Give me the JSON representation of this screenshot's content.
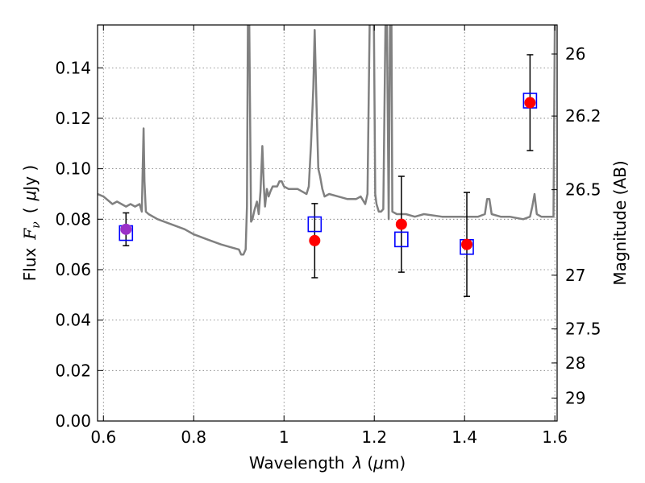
{
  "chart_data": {
    "type": "scatter",
    "xlabel": "Wavelength",
    "xlabel_symbol": "λ",
    "xlabel_unit_open": "(",
    "xlabel_unit_mu": "μ",
    "xlabel_unit_rest": "m)",
    "ylabel": "Flux",
    "ylabel_symbol": "F",
    "ylabel_sub": "ν",
    "ylabel_unit_open": "(",
    "ylabel_unit_mu": "μ",
    "ylabel_unit_rest": "Jy )",
    "y2label": "Magnitude (AB)",
    "xlim": [
      0.587,
      1.605
    ],
    "ylim": [
      0.0,
      0.157
    ],
    "xticks": [
      0.6,
      0.8,
      1.0,
      1.2,
      1.4,
      1.6
    ],
    "xtick_labels": [
      "0.6",
      "0.8",
      "1",
      "1.2",
      "1.4",
      "1.6"
    ],
    "yticks": [
      0.0,
      0.02,
      0.04,
      0.06,
      0.08,
      0.1,
      0.12,
      0.14
    ],
    "ytick_labels": [
      "0.00",
      "0.02",
      "0.04",
      "0.06",
      "0.08",
      "0.10",
      "0.12",
      "0.14"
    ],
    "y2ticks": [
      {
        "label": "26",
        "flux": 0.1455
      },
      {
        "label": "26.2",
        "flux": 0.1209
      },
      {
        "label": "26.5",
        "flux": 0.0917
      },
      {
        "label": "27",
        "flux": 0.0578
      },
      {
        "label": "27.5",
        "flux": 0.0365
      },
      {
        "label": "28",
        "flux": 0.023
      },
      {
        "label": "29",
        "flux": 0.0091
      }
    ],
    "grid": true,
    "colors": {
      "model": "#808080",
      "observed": "#ff0000",
      "synthetic": "#0000ff",
      "errorbar": "#000000",
      "overlap": "#9b30c8"
    },
    "series": [
      {
        "id": "model_sed",
        "type": "line",
        "x": [
          0.587,
          0.6,
          0.62,
          0.63,
          0.64,
          0.65,
          0.66,
          0.67,
          0.68,
          0.685,
          0.687,
          0.689,
          0.691,
          0.694,
          0.7,
          0.72,
          0.75,
          0.78,
          0.8,
          0.83,
          0.86,
          0.88,
          0.9,
          0.905,
          0.91,
          0.915,
          0.918,
          0.92,
          0.923,
          0.927,
          0.93,
          0.935,
          0.94,
          0.944,
          0.948,
          0.952,
          0.955,
          0.958,
          0.962,
          0.966,
          0.97,
          0.975,
          0.98,
          0.985,
          0.99,
          0.995,
          1.0,
          1.01,
          1.02,
          1.03,
          1.04,
          1.05,
          1.055,
          1.06,
          1.065,
          1.068,
          1.072,
          1.076,
          1.08,
          1.085,
          1.09,
          1.1,
          1.12,
          1.14,
          1.16,
          1.17,
          1.18,
          1.185,
          1.19,
          1.193,
          1.196,
          1.199,
          1.202,
          1.205,
          1.21,
          1.215,
          1.22,
          1.225,
          1.228,
          1.232,
          1.235,
          1.238,
          1.24,
          1.25,
          1.27,
          1.29,
          1.31,
          1.35,
          1.4,
          1.43,
          1.445,
          1.45,
          1.455,
          1.46,
          1.48,
          1.5,
          1.53,
          1.545,
          1.55,
          1.555,
          1.56,
          1.57,
          1.59,
          1.597,
          1.6,
          1.605
        ],
        "y": [
          0.09,
          0.089,
          0.086,
          0.087,
          0.086,
          0.085,
          0.086,
          0.085,
          0.086,
          0.083,
          0.1,
          0.116,
          0.095,
          0.083,
          0.082,
          0.08,
          0.078,
          0.076,
          0.074,
          0.072,
          0.07,
          0.069,
          0.068,
          0.066,
          0.066,
          0.068,
          0.085,
          0.16,
          0.16,
          0.079,
          0.08,
          0.084,
          0.087,
          0.082,
          0.091,
          0.109,
          0.094,
          0.085,
          0.092,
          0.089,
          0.091,
          0.093,
          0.093,
          0.093,
          0.095,
          0.095,
          0.093,
          0.092,
          0.092,
          0.092,
          0.091,
          0.09,
          0.093,
          0.11,
          0.132,
          0.155,
          0.125,
          0.1,
          0.097,
          0.092,
          0.089,
          0.09,
          0.089,
          0.088,
          0.088,
          0.089,
          0.086,
          0.09,
          0.16,
          0.16,
          0.16,
          0.16,
          0.09,
          0.086,
          0.083,
          0.083,
          0.084,
          0.16,
          0.16,
          0.08,
          0.16,
          0.16,
          0.083,
          0.082,
          0.082,
          0.081,
          0.082,
          0.081,
          0.081,
          0.081,
          0.082,
          0.088,
          0.088,
          0.082,
          0.081,
          0.081,
          0.08,
          0.081,
          0.085,
          0.09,
          0.082,
          0.081,
          0.081,
          0.081,
          0.16,
          0.16
        ]
      },
      {
        "id": "observed_photometry",
        "type": "errorbar",
        "marker": "circle",
        "x": [
          0.65,
          1.068,
          1.26,
          1.405,
          1.545
        ],
        "y": [
          0.076,
          0.0715,
          0.078,
          0.07,
          0.1262
        ],
        "yerr_low": [
          0.0065,
          0.0147,
          0.019,
          0.0206,
          0.019
        ],
        "yerr_high": [
          0.0065,
          0.0147,
          0.019,
          0.0206,
          0.019
        ]
      },
      {
        "id": "model_photometry",
        "type": "scatter",
        "marker": "open-square",
        "x": [
          0.65,
          1.068,
          1.26,
          1.405,
          1.545
        ],
        "y": [
          0.0745,
          0.078,
          0.072,
          0.069,
          0.127
        ]
      }
    ]
  }
}
